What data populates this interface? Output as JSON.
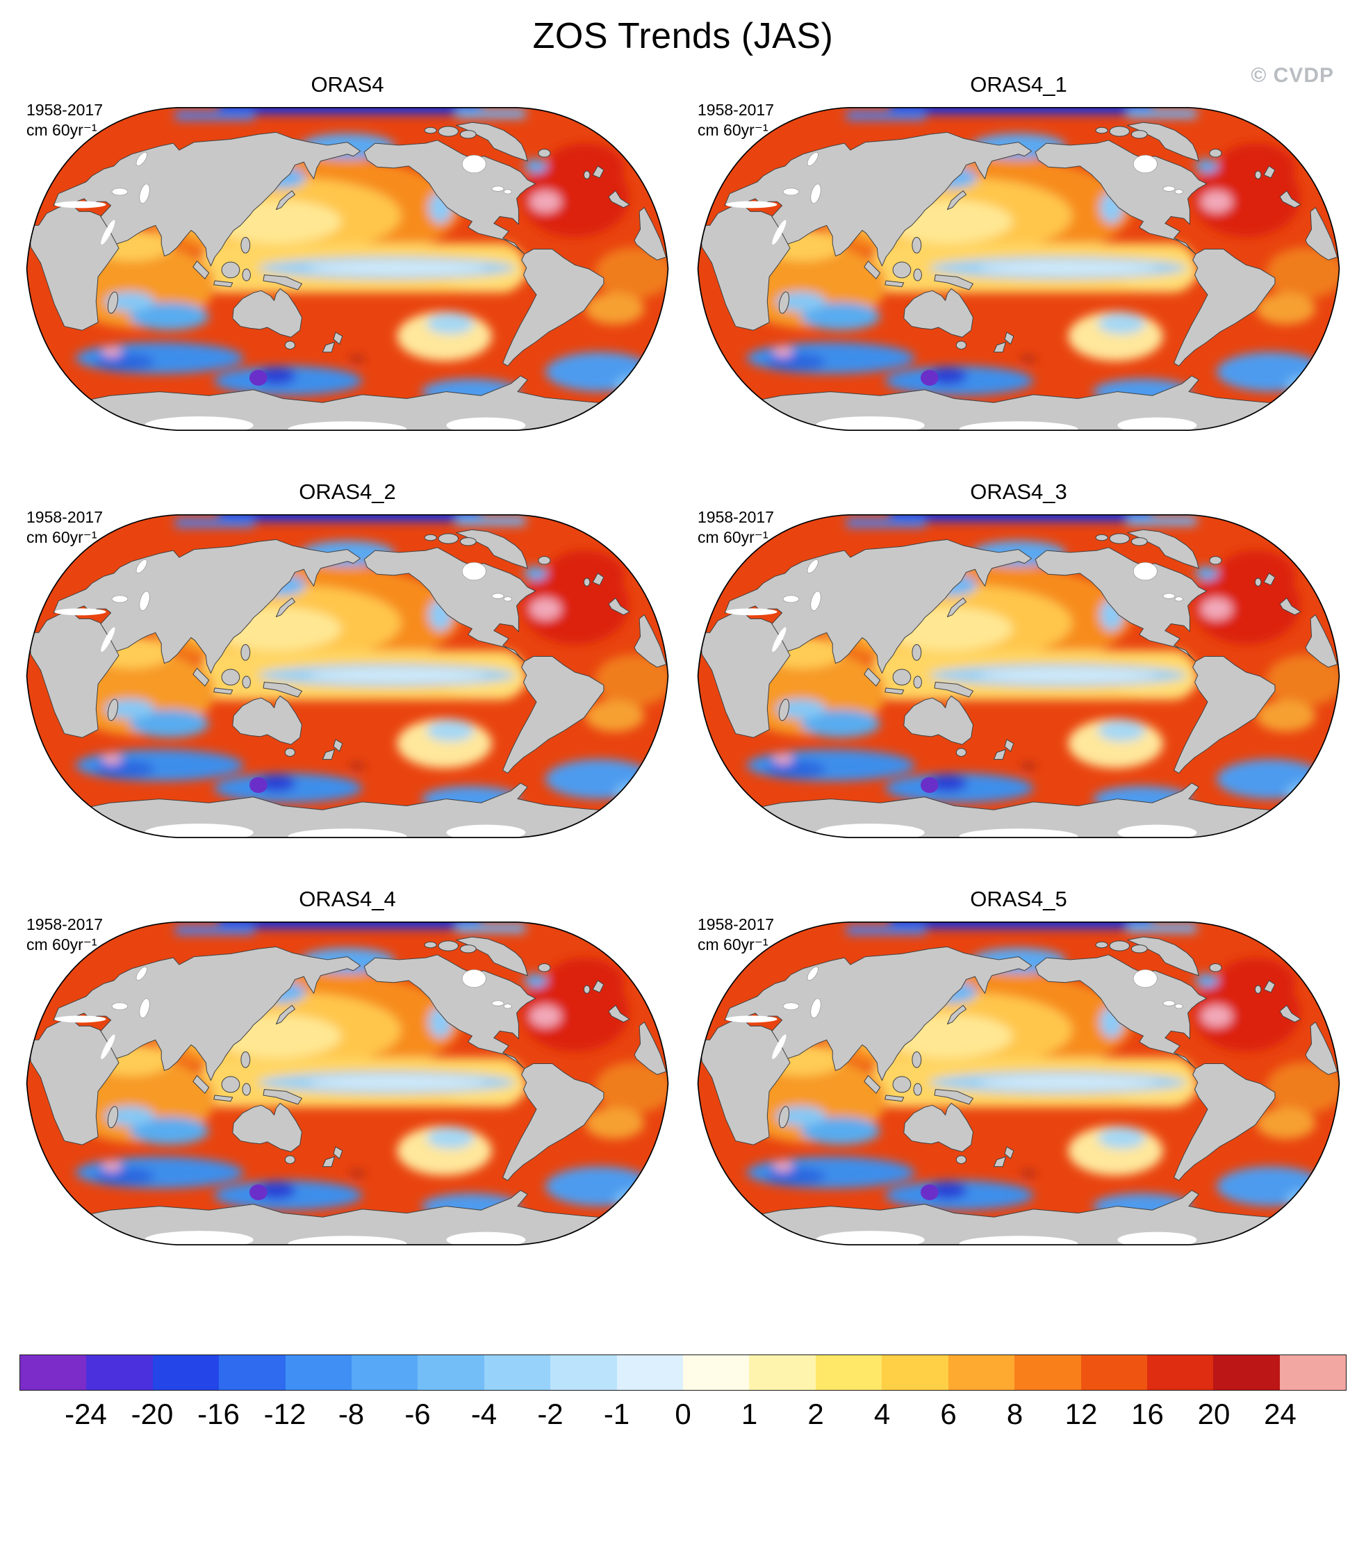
{
  "header": {
    "title": "ZOS Trends (JAS)",
    "watermark": "© CVDP"
  },
  "panels": [
    {
      "title": "ORAS4",
      "period": "1958-2017",
      "units": "cm 60yr⁻¹"
    },
    {
      "title": "ORAS4_1",
      "period": "1958-2017",
      "units": "cm 60yr⁻¹"
    },
    {
      "title": "ORAS4_2",
      "period": "1958-2017",
      "units": "cm 60yr⁻¹"
    },
    {
      "title": "ORAS4_3",
      "period": "1958-2017",
      "units": "cm 60yr⁻¹"
    },
    {
      "title": "ORAS4_4",
      "period": "1958-2017",
      "units": "cm 60yr⁻¹"
    },
    {
      "title": "ORAS4_5",
      "period": "1958-2017",
      "units": "cm 60yr⁻¹"
    }
  ],
  "colorbar": {
    "labels": [
      "-24",
      "-20",
      "-16",
      "-12",
      "-8",
      "-6",
      "-4",
      "-2",
      "-1",
      "0",
      "1",
      "2",
      "4",
      "6",
      "8",
      "12",
      "16",
      "20",
      "24"
    ],
    "colors": [
      "#7B2CC9",
      "#4A31DD",
      "#2446E8",
      "#2E6BEF",
      "#3F8FF4",
      "#57A8F7",
      "#74BEF8",
      "#97D2FA",
      "#BBE3FC",
      "#DCF0FD",
      "#FFFDE7",
      "#FFF4AE",
      "#FFE768",
      "#FFCF45",
      "#FEA930",
      "#F97F1B",
      "#EF5511",
      "#DE2D10",
      "#BC1616",
      "#F2A7A2"
    ]
  },
  "chart_data": {
    "type": "heatmap",
    "title": "ZOS Trends (JAS)",
    "panels": [
      "ORAS4",
      "ORAS4_1",
      "ORAS4_2",
      "ORAS4_3",
      "ORAS4_4",
      "ORAS4_5"
    ],
    "layout": "3 rows x 2 columns of Robinson-projection global maps, shared bottom colorbar",
    "period": "1958-2017",
    "units": "cm 60yr⁻¹",
    "colorbar_levels": [
      -24,
      -20,
      -16,
      -12,
      -8,
      -6,
      -4,
      -2,
      -1,
      0,
      1,
      2,
      4,
      6,
      8,
      12,
      16,
      20,
      24
    ],
    "colorbar_colors": [
      "#7B2CC9",
      "#4A31DD",
      "#2446E8",
      "#2E6BEF",
      "#3F8FF4",
      "#57A8F7",
      "#74BEF8",
      "#97D2FA",
      "#BBE3FC",
      "#DCF0FD",
      "#FFFDE7",
      "#FFF4AE",
      "#FFE768",
      "#FFCF45",
      "#FEA930",
      "#F97F1B",
      "#EF5511",
      "#DE2D10",
      "#BC1616",
      "#F2A7A2"
    ],
    "legend_position": "bottom",
    "land_color": "#C8C8C8",
    "watermark": "© CVDP",
    "notes": "Sea-surface-height (ZOS) trend maps; ocean mostly positive (orange/red), cool band along equatorial Pacific, negative (blue) patches in Southern Ocean, Arctic strip strongly negative, pink maximum off NE North America; all six ensemble members nearly identical."
  }
}
